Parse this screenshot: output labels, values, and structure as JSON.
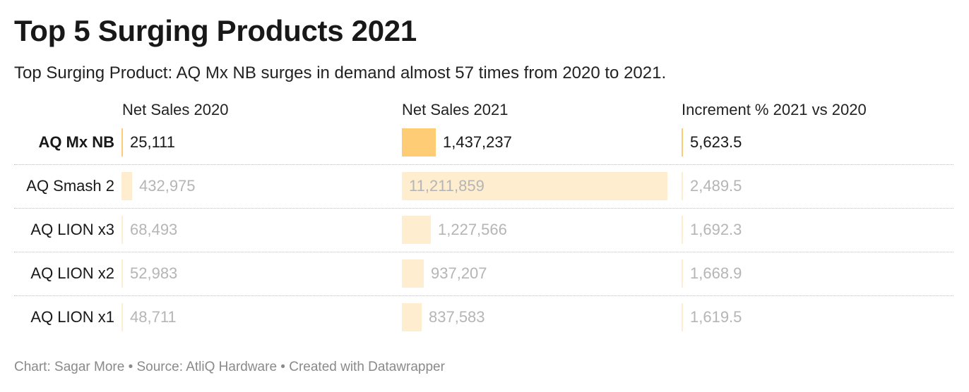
{
  "title": "Top 5 Surging Products 2021",
  "subtitle": "Top Surging Product: AQ Mx NB surges in demand almost 57 times from 2020 to 2021.",
  "headers": {
    "net_sales_2020": "Net Sales 2020",
    "net_sales_2021": "Net Sales 2021",
    "increment": "Increment % 2021 vs 2020"
  },
  "footer": "Chart: Sagar More • Source: AtliQ Hardware • Created with Datawrapper",
  "colors": {
    "bar": "#fdcc74",
    "faded_text": "#b5b5b5"
  },
  "chart_data": {
    "type": "table",
    "columns": [
      "Net Sales 2020",
      "Net Sales 2021",
      "Increment % 2021 vs 2020"
    ],
    "rows": [
      {
        "product": "AQ Mx NB",
        "sales_2020": 25111,
        "sales_2020_label": "25,111",
        "sales_2021": 1437237,
        "sales_2021_label": "1,437,237",
        "increment": 5623.5,
        "increment_label": "5,623.5",
        "highlight": true
      },
      {
        "product": "AQ Smash 2",
        "sales_2020": 432975,
        "sales_2020_label": "432,975",
        "sales_2021": 11211859,
        "sales_2021_label": "11,211,859",
        "increment": 2489.5,
        "increment_label": "2,489.5",
        "highlight": false
      },
      {
        "product": "AQ LION x3",
        "sales_2020": 68493,
        "sales_2020_label": "68,493",
        "sales_2021": 1227566,
        "sales_2021_label": "1,227,566",
        "increment": 1692.3,
        "increment_label": "1,692.3",
        "highlight": false
      },
      {
        "product": "AQ LION x2",
        "sales_2020": 52983,
        "sales_2020_label": "52,983",
        "sales_2021": 937207,
        "sales_2021_label": "937,207",
        "increment": 1668.9,
        "increment_label": "1,668.9",
        "highlight": false
      },
      {
        "product": "AQ LION x1",
        "sales_2020": 48711,
        "sales_2020_label": "48,711",
        "sales_2021": 837583,
        "sales_2021_label": "837,583",
        "increment": 1619.5,
        "increment_label": "1,619.5",
        "highlight": false
      }
    ]
  }
}
